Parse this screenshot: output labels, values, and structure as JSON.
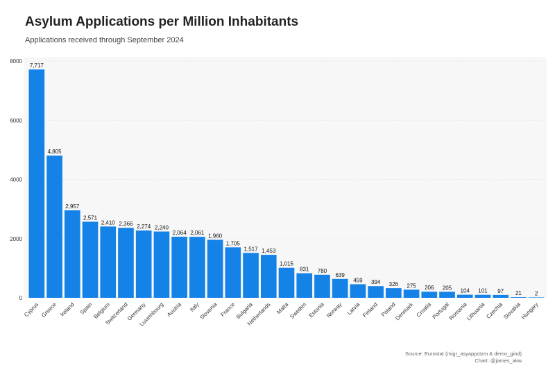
{
  "header": {
    "title": "Asylum Applications per Million Inhabitants",
    "subtitle": "Applications received through September 2024"
  },
  "footer": {
    "source": "Source: Eurostat (migr_asyappctzm & demo_gind)",
    "credit": "Chart: @james_akw"
  },
  "colors": {
    "bar": "#1582e8",
    "plot_background": "#f7f7f7",
    "grid": "#e6e6e6"
  },
  "chart_data": {
    "type": "bar",
    "title": "Asylum Applications per Million Inhabitants",
    "subtitle": "Applications received through September 2024",
    "xlabel": "",
    "ylabel": "",
    "ylim": [
      0,
      8000
    ],
    "yticks": [
      0,
      2000,
      4000,
      6000,
      8000
    ],
    "grid": true,
    "categories": [
      "Cyprus",
      "Greece",
      "Ireland",
      "Spain",
      "Belgium",
      "Switzerland",
      "Germany",
      "Luxembourg",
      "Austria",
      "Italy",
      "Slovenia",
      "France",
      "Bulgaria",
      "Netherlands",
      "Malta",
      "Sweden",
      "Estonia",
      "Norway",
      "Latvia",
      "Finland",
      "Poland",
      "Denmark",
      "Croatia",
      "Portugal",
      "Romania",
      "Lithuania",
      "Czechia",
      "Slovakia",
      "Hungary"
    ],
    "values": [
      7717,
      4805,
      2957,
      2571,
      2410,
      2366,
      2274,
      2240,
      2064,
      2061,
      1960,
      1705,
      1517,
      1453,
      1015,
      831,
      780,
      639,
      459,
      394,
      326,
      275,
      206,
      205,
      104,
      101,
      97,
      21,
      2
    ],
    "value_labels": [
      "7,717",
      "4,805",
      "2,957",
      "2,571",
      "2,410",
      "2,366",
      "2,274",
      "2,240",
      "2,064",
      "2,061",
      "1,960",
      "1,705",
      "1,517",
      "1,453",
      "1,015",
      "831",
      "780",
      "639",
      "459",
      "394",
      "326",
      "275",
      "206",
      "205",
      "104",
      "101",
      "97",
      "21",
      "2"
    ]
  }
}
